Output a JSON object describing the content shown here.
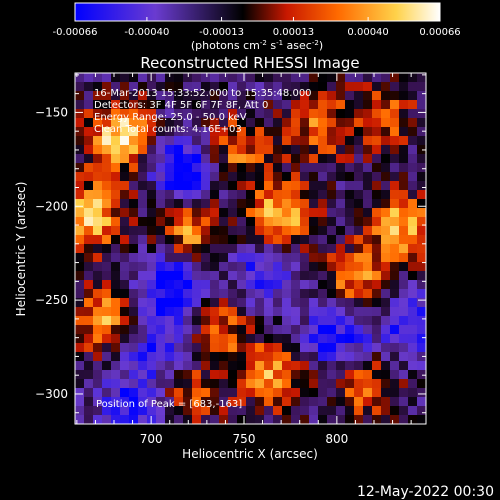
{
  "chart_data": {
    "type": "heatmap",
    "title": "Reconstructed RHESSI Image",
    "xlabel": "Heliocentric X (arcsec)",
    "ylabel": "Heliocentric Y (arcsec)",
    "xlim": [
      659,
      848
    ],
    "ylim": [
      -316,
      -129
    ],
    "x_ticks": [
      700,
      750,
      800
    ],
    "y_ticks": [
      -150,
      -200,
      -250,
      -300
    ],
    "grid": false,
    "colorbar": {
      "range": [
        -0.00066,
        0.00066
      ],
      "tick_values": [
        -0.00066,
        -0.0004,
        -0.00013,
        0.00013,
        0.0004,
        0.00066
      ],
      "tick_labels": [
        "-0.00066",
        "-0.00040",
        "-0.00013",
        "0.00013",
        "0.00040",
        "0.00066"
      ],
      "units_main": "(photons cm",
      "units_sup1": "-2",
      "units_mid1": " s",
      "units_sup2": "-1",
      "units_mid2": " asec",
      "units_sup3": "-2",
      "units_end": ")",
      "colormap": [
        "#0000ff",
        "#6a3bd0",
        "#000000",
        "#c81800",
        "#ff6a00",
        "#ffd24a",
        "#ffffff"
      ]
    },
    "annotations": {
      "time_range": "16-Mar-2013 15:33:52.000 to 15:35:48.000",
      "detectors": "Detectors: 3F 4F 5F 6F 7F 8F, Att 0",
      "energy": "Energy Range: 25.0 - 50.0 keV",
      "clean": "Clean     Total counts: 4.16E+03",
      "peak": "Position of Peak = [683,-163]"
    },
    "peak": [
      683,
      -163
    ],
    "bright_regions": [
      {
        "x": 683,
        "y": -163,
        "intensity": 1.0
      },
      {
        "x": 668,
        "y": -205,
        "intensity": 0.85
      },
      {
        "x": 720,
        "y": -215,
        "intensity": 0.8
      },
      {
        "x": 770,
        "y": -205,
        "intensity": 0.85
      },
      {
        "x": 835,
        "y": -210,
        "intensity": 0.85
      },
      {
        "x": 810,
        "y": -240,
        "intensity": 0.7
      },
      {
        "x": 745,
        "y": -170,
        "intensity": 0.65
      },
      {
        "x": 790,
        "y": -158,
        "intensity": 0.6
      },
      {
        "x": 825,
        "y": -152,
        "intensity": 0.55
      },
      {
        "x": 675,
        "y": -260,
        "intensity": 0.75
      },
      {
        "x": 735,
        "y": -265,
        "intensity": 0.6
      },
      {
        "x": 765,
        "y": -290,
        "intensity": 0.75
      },
      {
        "x": 815,
        "y": -295,
        "intensity": 0.6
      },
      {
        "x": 720,
        "y": -300,
        "intensity": 0.5
      }
    ],
    "faint_regions": [
      {
        "x": 718,
        "y": -180,
        "intensity": -0.85
      },
      {
        "x": 712,
        "y": -240,
        "intensity": -0.9
      },
      {
        "x": 705,
        "y": -275,
        "intensity": -0.6
      },
      {
        "x": 800,
        "y": -270,
        "intensity": -0.7
      },
      {
        "x": 760,
        "y": -235,
        "intensity": -0.5
      },
      {
        "x": 840,
        "y": -265,
        "intensity": -0.55
      },
      {
        "x": 690,
        "y": -305,
        "intensity": -0.5
      }
    ]
  },
  "footer": {
    "timestamp": "12-May-2022 00:30"
  }
}
